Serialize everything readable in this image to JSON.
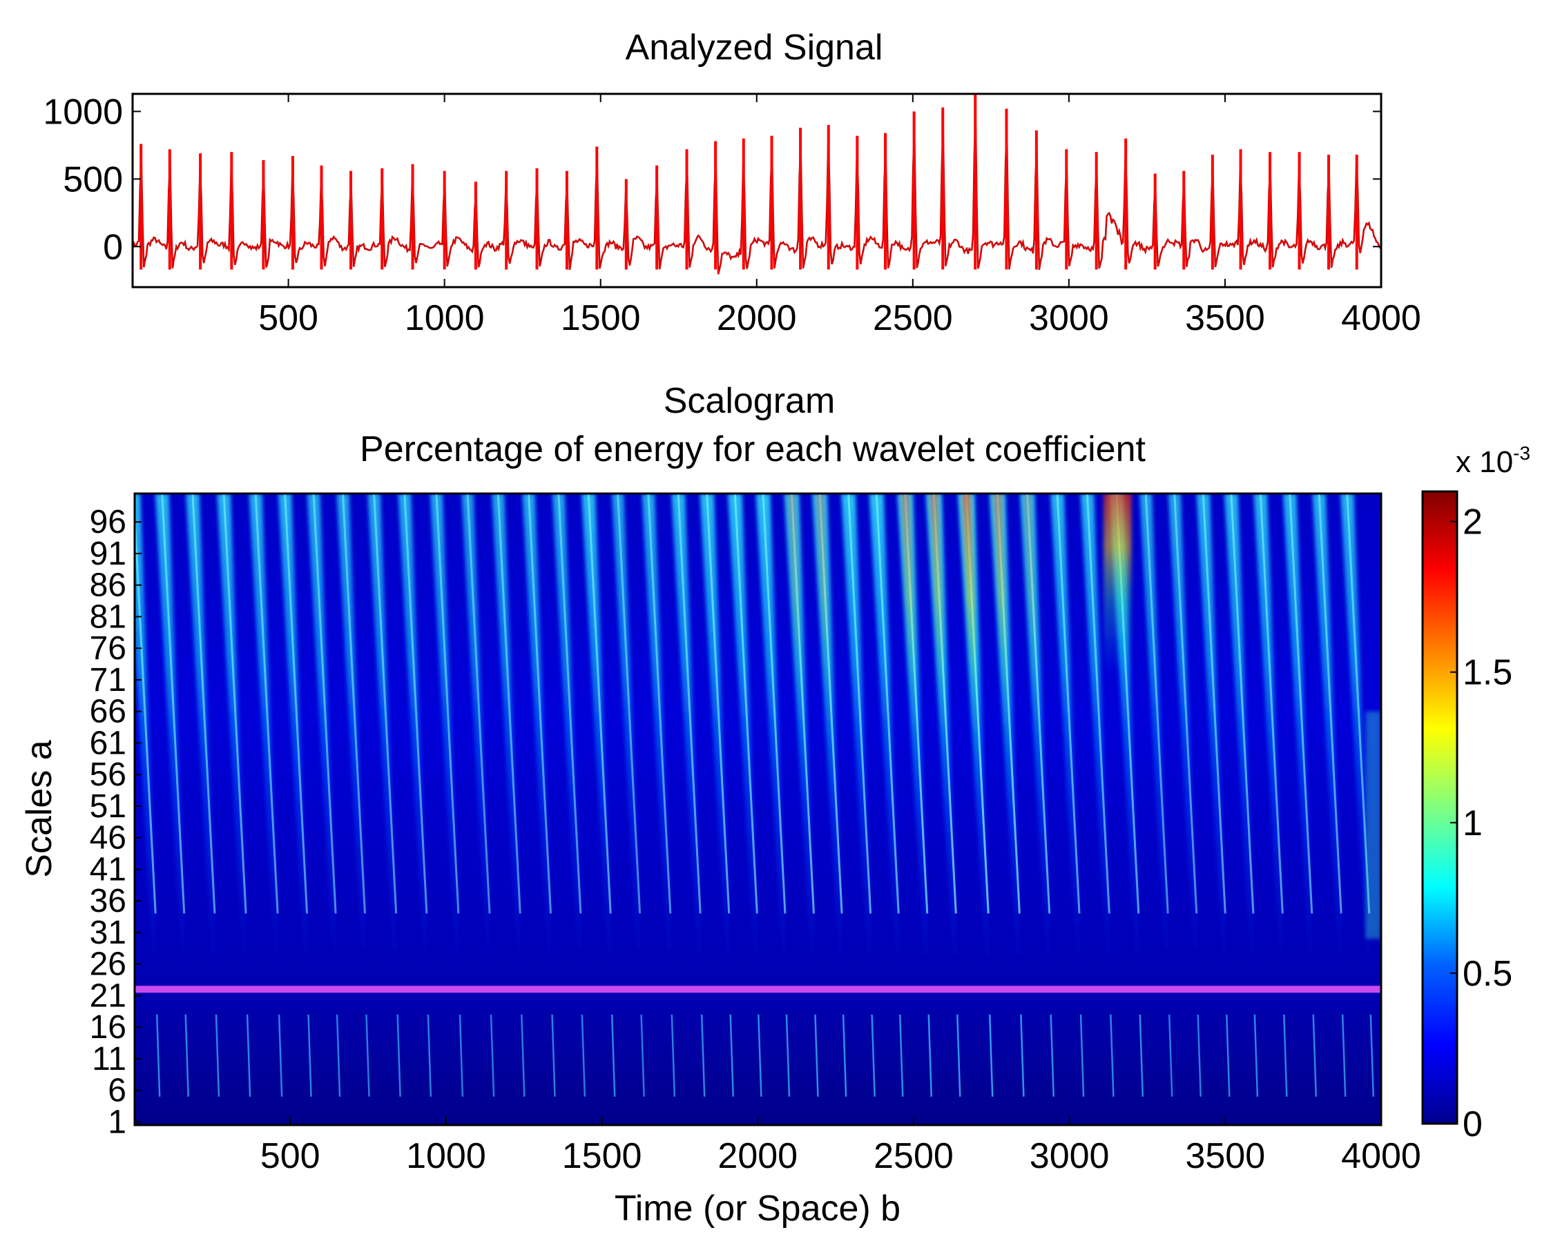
{
  "chart_data": [
    {
      "id": "analyzed-signal",
      "type": "line",
      "title": "Analyzed Signal",
      "xlabel": "",
      "ylabel": "",
      "xlim": [
        1,
        4000
      ],
      "ylim": [
        -300,
        1130
      ],
      "xticks": [
        500,
        1000,
        1500,
        2000,
        2500,
        3000,
        3500,
        4000
      ],
      "yticks": [
        0,
        500,
        1000
      ],
      "series_color": "#ff0000",
      "series_dark_color": "#8b0000",
      "beats": {
        "x": [
          28,
          120,
          218,
          318,
          420,
          514,
          606,
          700,
          800,
          898,
          1000,
          1100,
          1198,
          1296,
          1392,
          1488,
          1582,
          1680,
          1776,
          1868,
          1958,
          2048,
          2140,
          2230,
          2322,
          2412,
          2504,
          2596,
          2700,
          2800,
          2896,
          2992,
          3088,
          3182,
          3276,
          3368,
          3460,
          3550,
          3644,
          3738,
          3832,
          3922
        ],
        "peak": [
          760,
          720,
          690,
          700,
          640,
          670,
          600,
          560,
          580,
          610,
          560,
          480,
          560,
          580,
          560,
          740,
          500,
          600,
          720,
          780,
          800,
          820,
          880,
          900,
          820,
          840,
          1000,
          1030,
          1130,
          1020,
          860,
          720,
          700,
          800,
          540,
          560,
          680,
          720,
          700,
          700,
          680,
          680
        ]
      }
    },
    {
      "id": "scalogram",
      "type": "heatmap",
      "title": "Scalogram",
      "subtitle": "Percentage of energy for each wavelet coefficient",
      "xlabel": "Time (or Space) b",
      "ylabel": "Scales a",
      "xlim": [
        1,
        4000
      ],
      "ylim": [
        1,
        100
      ],
      "xticks": [
        500,
        1000,
        1500,
        2000,
        2500,
        3000,
        3500,
        4000
      ],
      "yticks": [
        1,
        6,
        11,
        16,
        21,
        26,
        31,
        36,
        41,
        46,
        51,
        56,
        61,
        66,
        71,
        76,
        81,
        86,
        91,
        96
      ],
      "highlight_scale": 22,
      "highlight_color": "#c84bf0",
      "colorbar": {
        "range": [
          0,
          2.1
        ],
        "ticks": [
          "0",
          "0.5",
          "1",
          "1.5",
          "2"
        ],
        "exponent_label": "x 10",
        "exponent": "-3",
        "colors": [
          "#00008f",
          "#0000ff",
          "#0080ff",
          "#00ffff",
          "#80ff80",
          "#ffff00",
          "#ff8000",
          "#ff0000",
          "#800000"
        ]
      }
    }
  ]
}
